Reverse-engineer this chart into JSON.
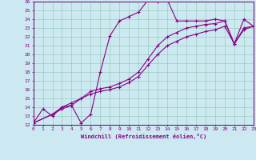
{
  "xlabel": "Windchill (Refroidissement éolien,°C)",
  "bg_color": "#cce8f0",
  "grid_color": "#99ccbb",
  "line_color": "#880088",
  "spine_color": "#660066",
  "ylim": [
    12,
    26
  ],
  "xlim": [
    0,
    23
  ],
  "yticks": [
    12,
    13,
    14,
    15,
    16,
    17,
    18,
    19,
    20,
    21,
    22,
    23,
    24,
    25,
    26
  ],
  "xticks": [
    0,
    1,
    2,
    3,
    4,
    5,
    6,
    7,
    8,
    9,
    10,
    11,
    12,
    13,
    14,
    15,
    16,
    17,
    18,
    19,
    20,
    21,
    22,
    23
  ],
  "line1_x": [
    0,
    1,
    2,
    3,
    4,
    5,
    6,
    7,
    8,
    9,
    10,
    11,
    12,
    13,
    14,
    15,
    16,
    17,
    18,
    19,
    20,
    21,
    22,
    23
  ],
  "line1_y": [
    12.2,
    13.8,
    13.0,
    14.0,
    14.2,
    12.2,
    13.2,
    18.0,
    22.1,
    23.8,
    24.3,
    24.8,
    26.2,
    26.0,
    26.2,
    23.8,
    23.8,
    23.8,
    23.8,
    24.0,
    23.8,
    21.2,
    24.0,
    23.2
  ],
  "line2_x": [
    0,
    2,
    3,
    4,
    5,
    6,
    7,
    8,
    9,
    10,
    11,
    12,
    13,
    14,
    15,
    16,
    17,
    18,
    19,
    20,
    21,
    22,
    23
  ],
  "line2_y": [
    12.2,
    13.2,
    14.0,
    14.5,
    15.0,
    15.5,
    15.8,
    16.0,
    16.3,
    16.8,
    17.5,
    18.8,
    20.0,
    21.0,
    21.5,
    22.0,
    22.3,
    22.6,
    22.8,
    23.2,
    21.2,
    22.8,
    23.2
  ],
  "line3_x": [
    0,
    2,
    3,
    4,
    5,
    6,
    7,
    8,
    9,
    10,
    11,
    12,
    13,
    14,
    15,
    16,
    17,
    18,
    19,
    20,
    21,
    22,
    23
  ],
  "line3_y": [
    12.2,
    13.2,
    13.8,
    14.2,
    15.0,
    15.8,
    16.1,
    16.3,
    16.7,
    17.2,
    18.0,
    19.5,
    21.0,
    22.0,
    22.5,
    23.0,
    23.2,
    23.4,
    23.5,
    23.8,
    21.2,
    23.0,
    23.2
  ]
}
